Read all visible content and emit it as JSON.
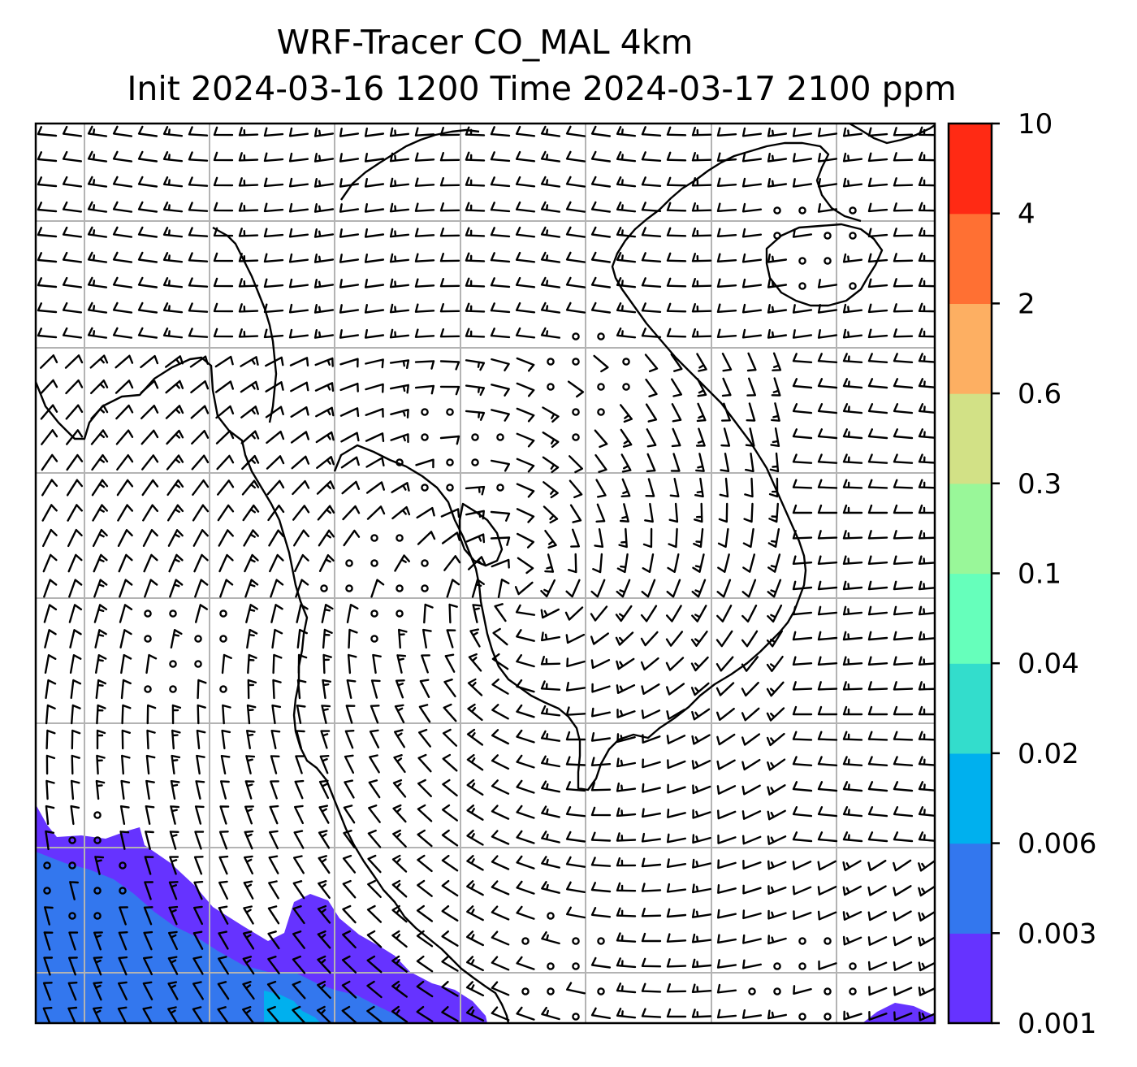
{
  "title": {
    "line1": "WRF-Tracer CO_MAL 4km",
    "line2": "Init 2024-03-16 1200 Time 2024-03-17 2100 ppm"
  },
  "colorbar": {
    "levels": [
      "0.001",
      "0.003",
      "0.006",
      "0.02",
      "0.04",
      "0.1",
      "0.3",
      "0.6",
      "2",
      "4",
      "10"
    ],
    "colors": [
      "#6633ff",
      "#3377ee",
      "#00b0ee",
      "#33ddcc",
      "#66ffbb",
      "#99f799",
      "#d2e186",
      "#fdaf62",
      "#ff7033",
      "#ff2a14"
    ]
  },
  "map": {
    "grid": true,
    "overlay": "wind barbs",
    "coastline_color": "#000000",
    "gridline_color": "#b3b3b3",
    "background_color": "#ffffff"
  }
}
